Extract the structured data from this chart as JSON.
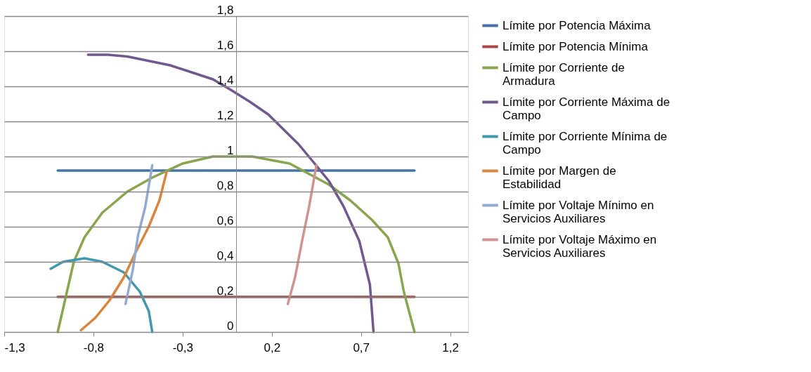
{
  "chart_data": {
    "type": "line",
    "xlim": [
      -1.3,
      1.3
    ],
    "ylim": [
      0,
      1.8
    ],
    "xticks": [
      {
        "value": -1.3,
        "label": "-1,3"
      },
      {
        "value": -0.8,
        "label": "-0,8"
      },
      {
        "value": -0.3,
        "label": "-0,3"
      },
      {
        "value": 0.2,
        "label": "0,2"
      },
      {
        "value": 0.7,
        "label": "0,7"
      },
      {
        "value": 1.2,
        "label": "1,2"
      }
    ],
    "yticks": [
      0,
      {
        "value": 0.2,
        "label": "0,2"
      },
      {
        "value": 0.4,
        "label": "0,4"
      },
      {
        "value": 0.6,
        "label": "0,6"
      },
      {
        "value": 0.8,
        "label": "0,8"
      },
      1,
      {
        "value": 1.2,
        "label": "1,2"
      },
      {
        "value": 1.4,
        "label": "1,4"
      },
      {
        "value": 1.6,
        "label": "1,6"
      },
      {
        "value": 1.8,
        "label": "1,8"
      }
    ],
    "grid": "y",
    "legend": "right",
    "marker": "none",
    "line_style": "solid",
    "series": [
      {
        "name": "Límite por Potencia Máxima",
        "color": "#4572a7",
        "x": [
          -1.0,
          1.0
        ],
        "values": [
          0.92,
          0.92
        ]
      },
      {
        "name": "Límite por Potencia Mínima",
        "color": "#aa4643",
        "x": [
          -1.0,
          1.0
        ],
        "values": [
          0.2,
          0.2
        ]
      },
      {
        "name": "Límite por Corriente de Armadura",
        "color": "#89a54e",
        "x": [
          -1.0,
          -0.91,
          -0.85,
          -0.75,
          -0.61,
          -0.47,
          -0.3,
          -0.13,
          0.09,
          0.3,
          0.52,
          0.64,
          0.76,
          0.85,
          0.91,
          0.94,
          1.0
        ],
        "values": [
          0,
          0.4,
          0.54,
          0.68,
          0.8,
          0.88,
          0.96,
          1.0,
          1.0,
          0.96,
          0.84,
          0.75,
          0.64,
          0.54,
          0.39,
          0.23,
          0
        ]
      },
      {
        "name": "Límite por Corriente Máxima de Campo",
        "color": "#71588f",
        "x": [
          -0.83,
          -0.72,
          -0.61,
          -0.37,
          -0.13,
          -0.03,
          0.08,
          0.18,
          0.35,
          0.44,
          0.52,
          0.6,
          0.69,
          0.75,
          0.77
        ],
        "values": [
          1.58,
          1.58,
          1.57,
          1.52,
          1.44,
          1.38,
          1.31,
          1.24,
          1.07,
          0.96,
          0.86,
          0.72,
          0.52,
          0.27,
          0
        ]
      },
      {
        "name": "Límite por Corriente Mínima de Campo",
        "color": "#4198af",
        "x": [
          -1.04,
          -0.97,
          -0.85,
          -0.75,
          -0.63,
          -0.54,
          -0.49,
          -0.47
        ],
        "values": [
          0.36,
          0.4,
          0.42,
          0.4,
          0.34,
          0.23,
          0.12,
          0
        ]
      },
      {
        "name": "Límite por Margen de Estabilidad",
        "color": "#db843d",
        "x": [
          -0.87,
          -0.79,
          -0.71,
          -0.63,
          -0.57,
          -0.49,
          -0.43,
          -0.39
        ],
        "values": [
          0.01,
          0.08,
          0.18,
          0.31,
          0.44,
          0.6,
          0.75,
          0.91
        ]
      },
      {
        "name": "Límite por Voltaje Mínimo en Servicios Auxiliares",
        "color": "#93a9cf",
        "x": [
          -0.62,
          -0.58,
          -0.55,
          -0.51,
          -0.47
        ],
        "values": [
          0.16,
          0.35,
          0.55,
          0.71,
          0.95
        ]
      },
      {
        "name": "Límite por Voltaje Máximo en Servicios Auxiliares",
        "color": "#d19392",
        "x": [
          0.29,
          0.33,
          0.37,
          0.41,
          0.45
        ],
        "values": [
          0.16,
          0.31,
          0.52,
          0.72,
          0.95
        ]
      }
    ]
  }
}
